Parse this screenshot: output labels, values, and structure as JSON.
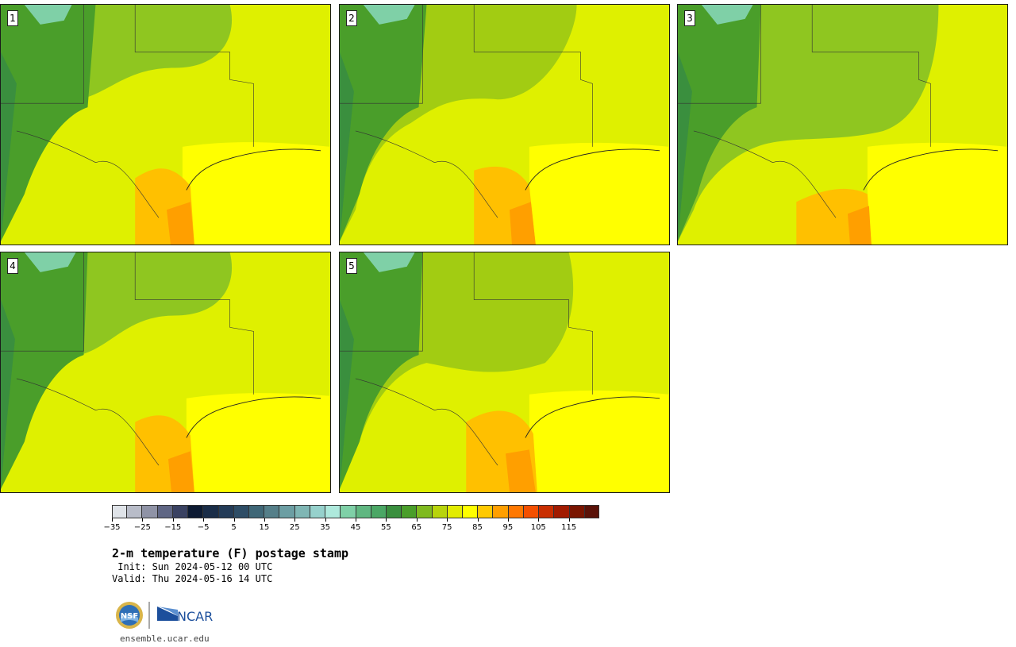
{
  "panels": [
    {
      "label": "1"
    },
    {
      "label": "2"
    },
    {
      "label": "3"
    },
    {
      "label": "4"
    },
    {
      "label": "5"
    }
  ],
  "colorbar": {
    "colors": [
      "#dfe3e8",
      "#b8bcc8",
      "#8f93a6",
      "#5f6684",
      "#3a4262",
      "#0d1b33",
      "#1a2d48",
      "#243c58",
      "#2e4d66",
      "#3f6777",
      "#557f89",
      "#6c9ea3",
      "#7fb6b4",
      "#96d1cc",
      "#aee9dc",
      "#7fd0a7",
      "#60b781",
      "#4ba765",
      "#3a8f3e",
      "#4a9e2a",
      "#7fba1f",
      "#b8d40c",
      "#e2ec00",
      "#ffff00",
      "#ffc900",
      "#ff9f00",
      "#ff7800",
      "#f45000",
      "#c92e00",
      "#a11b00",
      "#7a1500",
      "#5a1208"
    ],
    "ticks": [
      "−35",
      "−25",
      "−15",
      "−5",
      "5",
      "15",
      "25",
      "35",
      "45",
      "55",
      "65",
      "75",
      "85",
      "95",
      "105",
      "115"
    ]
  },
  "title": "2-m temperature (F) postage stamp",
  "init_line": " Init: Sun 2024-05-12 00 UTC",
  "valid_line": "Valid: Thu 2024-05-16 14 UTC",
  "logos": {
    "nsf": "NSF",
    "ncar": "NCAR"
  },
  "website": "ensemble.ucar.edu"
}
